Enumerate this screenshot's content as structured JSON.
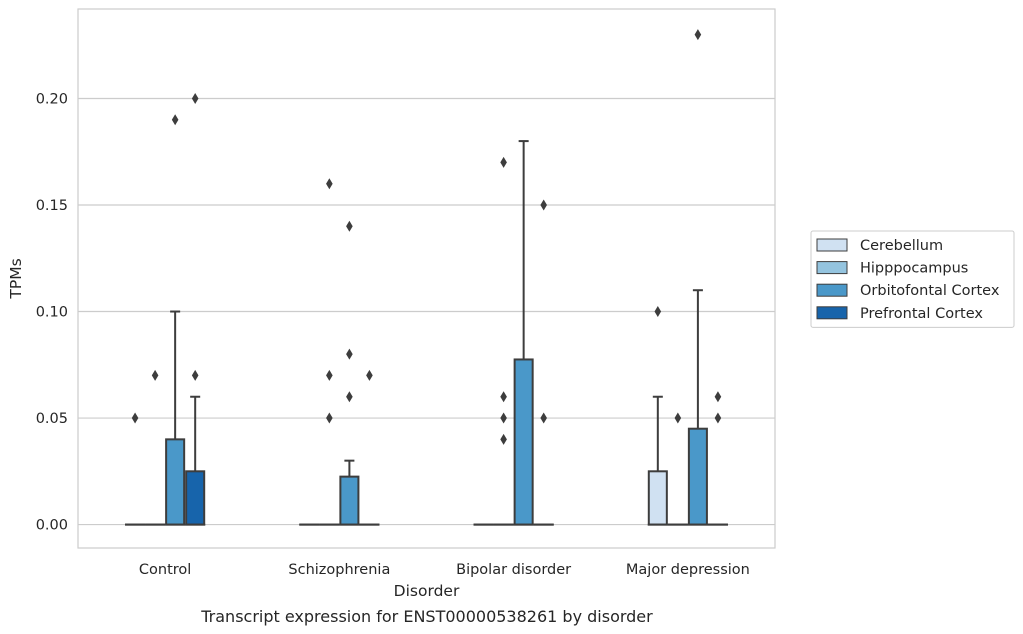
{
  "caption": "Transcript expression for ENST00000538261 by disorder",
  "chart_data": {
    "type": "box",
    "xlabel": "Disorder",
    "ylabel": "TPMs",
    "ylim": [
      -0.011,
      0.242
    ],
    "yticks": [
      0.0,
      0.05,
      0.1,
      0.15,
      0.2
    ],
    "ytick_labels": [
      "0.00",
      "0.05",
      "0.10",
      "0.15",
      "0.20"
    ],
    "grid": "horizontal",
    "legend_position": "right",
    "categories": [
      "Control",
      "Schizophrenia",
      "Bipolar disorder",
      "Major depression"
    ],
    "series": [
      {
        "name": "Cerebellum",
        "color": "#d0e1f2",
        "boxes": [
          {
            "q1": 0,
            "median": 0,
            "q3": 0,
            "whisker_low": 0,
            "whisker_high": 0,
            "outliers": [
              0.05
            ]
          },
          {
            "q1": 0,
            "median": 0,
            "q3": 0,
            "whisker_low": 0,
            "whisker_high": 0,
            "outliers": []
          },
          {
            "q1": 0,
            "median": 0,
            "q3": 0,
            "whisker_low": 0,
            "whisker_high": 0,
            "outliers": []
          },
          {
            "q1": 0,
            "median": 0,
            "q3": 0.025,
            "whisker_low": 0,
            "whisker_high": 0.06,
            "outliers": [
              0.1
            ]
          }
        ]
      },
      {
        "name": "Hipppocampus",
        "color": "#94c4df",
        "boxes": [
          {
            "q1": 0,
            "median": 0,
            "q3": 0,
            "whisker_low": 0,
            "whisker_high": 0,
            "outliers": [
              0.07
            ]
          },
          {
            "q1": 0,
            "median": 0,
            "q3": 0,
            "whisker_low": 0,
            "whisker_high": 0,
            "outliers": [
              0.05,
              0.07,
              0.16
            ]
          },
          {
            "q1": 0,
            "median": 0,
            "q3": 0,
            "whisker_low": 0,
            "whisker_high": 0,
            "outliers": [
              0.05,
              0.06
            ]
          },
          {
            "q1": 0,
            "median": 0,
            "q3": 0,
            "whisker_low": 0,
            "whisker_high": 0,
            "outliers": [
              0.05
            ]
          }
        ]
      },
      {
        "name": "Orbitofontal Cortex",
        "color": "#4a98c9",
        "boxes": [
          {
            "q1": 0,
            "median": 0,
            "q3": 0.04,
            "whisker_low": 0,
            "whisker_high": 0.1,
            "outliers": [
              0.19
            ]
          },
          {
            "q1": 0,
            "median": 0,
            "q3": 0.0225,
            "whisker_low": 0,
            "whisker_high": 0.03,
            "outliers": [
              0.06,
              0.08,
              0.14
            ]
          },
          {
            "q1": 0,
            "median": 0,
            "q3": 0.0775,
            "whisker_low": 0,
            "whisker_high": 0.18,
            "outliers": []
          },
          {
            "q1": 0,
            "median": 0,
            "q3": 0.045,
            "whisker_low": 0,
            "whisker_high": 0.11,
            "outliers": [
              0.23
            ]
          }
        ]
      },
      {
        "name": "Prefrontal Cortex",
        "color": "#1764ab",
        "boxes": [
          {
            "q1": 0,
            "median": 0,
            "q3": 0.025,
            "whisker_low": 0,
            "whisker_high": 0.06,
            "outliers": [
              0.07,
              0.2
            ]
          },
          {
            "q1": 0,
            "median": 0,
            "q3": 0,
            "whisker_low": 0,
            "whisker_high": 0,
            "outliers": [
              0.07
            ]
          },
          {
            "q1": 0,
            "median": 0,
            "q3": 0,
            "whisker_low": 0,
            "whisker_high": 0,
            "outliers": [
              0.05,
              0.15
            ]
          },
          {
            "q1": 0,
            "median": 0,
            "q3": 0,
            "whisker_low": 0,
            "whisker_high": 0,
            "outliers": [
              0.05,
              0.06
            ]
          }
        ]
      }
    ],
    "bipolar_extra_outliers": {
      "series": "Hipppocampus",
      "values": [
        0.04,
        0.17
      ]
    }
  }
}
